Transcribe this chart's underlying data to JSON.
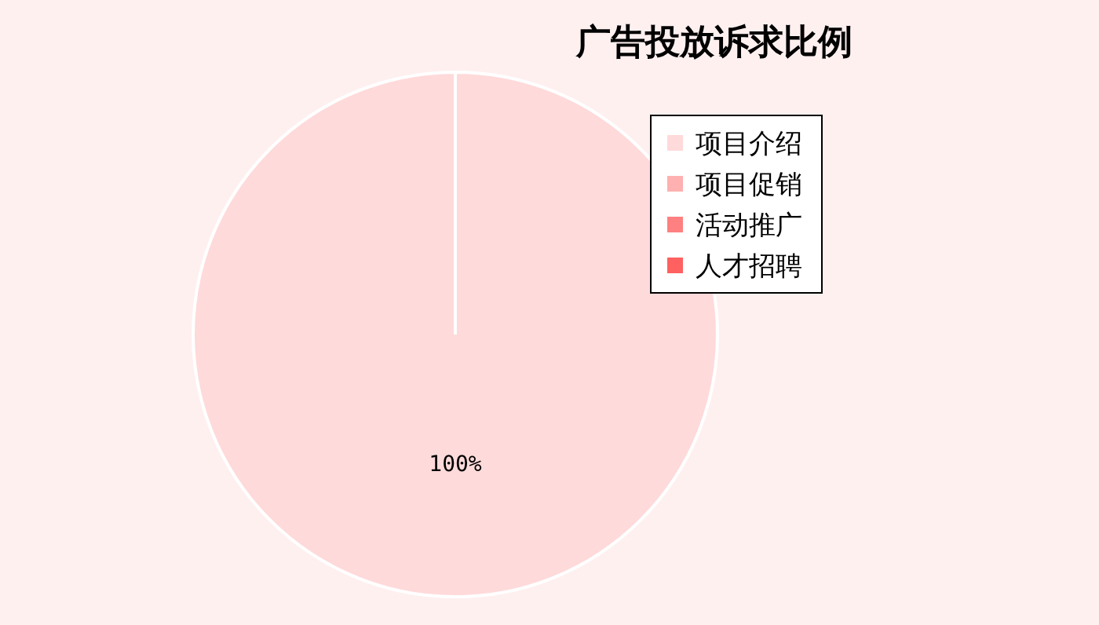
{
  "chart_data": {
    "type": "pie",
    "title": "广告投放诉求比例",
    "categories": [
      "项目介绍",
      "项目促销",
      "活动推广",
      "人才招聘"
    ],
    "values": [
      100,
      0,
      0,
      0
    ],
    "colors": [
      "#ffdada",
      "#ffb0b0",
      "#ff8080",
      "#ff6060"
    ],
    "value_labels": [
      "100%",
      null,
      null,
      null
    ],
    "legend": "top right"
  }
}
